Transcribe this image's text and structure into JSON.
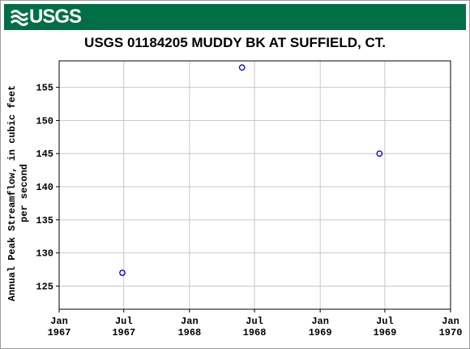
{
  "banner": {
    "logo_text": "USGS",
    "color": "#006f45"
  },
  "chart_data": {
    "type": "scatter",
    "title": "USGS 01184205 MUDDY BK AT SUFFIELD, CT.",
    "ylabel": "Annual Peak Streamflow, in cubic feet per second",
    "ylabel_lines": [
      "Annual Peak Streamflow, in cubic feet",
      "per second"
    ],
    "xlabel": "",
    "xlim": [
      "1967-01-01",
      "1970-01-01"
    ],
    "ylim": [
      121.5,
      159.0
    ],
    "yticks": [
      125,
      130,
      135,
      140,
      145,
      150,
      155
    ],
    "xticks": [
      {
        "date": "1967-01-01",
        "line1": "Jan",
        "line2": "1967"
      },
      {
        "date": "1967-07-01",
        "line1": "Jul",
        "line2": "1967"
      },
      {
        "date": "1968-01-01",
        "line1": "Jan",
        "line2": "1968"
      },
      {
        "date": "1968-07-01",
        "line1": "Jul",
        "line2": "1968"
      },
      {
        "date": "1969-01-01",
        "line1": "Jan",
        "line2": "1969"
      },
      {
        "date": "1969-07-01",
        "line1": "Jul",
        "line2": "1969"
      },
      {
        "date": "1970-01-01",
        "line1": "Jan",
        "line2": "1970"
      }
    ],
    "grid": true,
    "marker": "open-circle",
    "marker_color": "#0000cc",
    "points": [
      {
        "x": "1967-06-27",
        "y": 127
      },
      {
        "x": "1968-05-27",
        "y": 158
      },
      {
        "x": "1969-06-16",
        "y": 145
      }
    ]
  }
}
